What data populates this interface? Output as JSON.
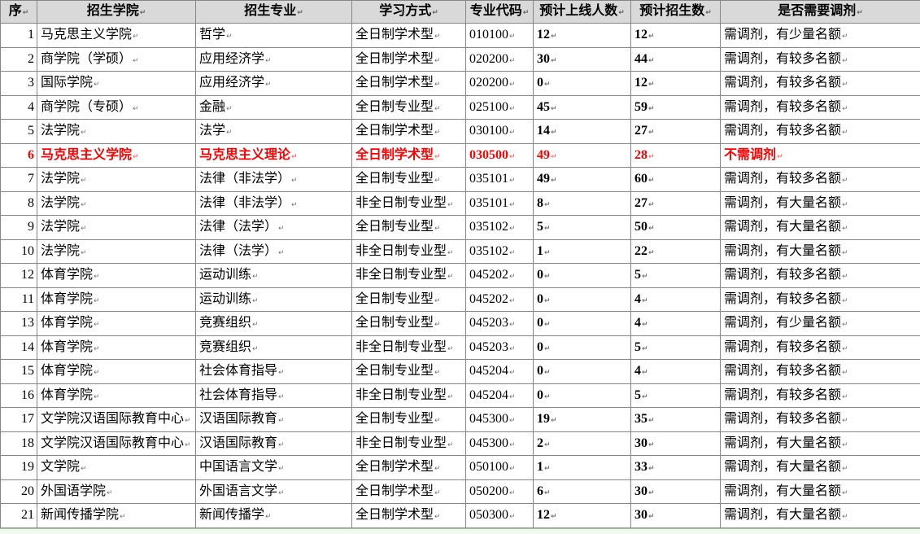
{
  "table": {
    "end_of_cell_mark": "↵",
    "columns": [
      {
        "key": "seq",
        "label": "序"
      },
      {
        "key": "college",
        "label": "招生学院"
      },
      {
        "key": "major",
        "label": "招生专业"
      },
      {
        "key": "mode",
        "label": "学习方式"
      },
      {
        "key": "code",
        "label": "专业代码"
      },
      {
        "key": "online",
        "label": "预计上线人数"
      },
      {
        "key": "enroll",
        "label": "预计招生数"
      },
      {
        "key": "adjust",
        "label": "是否需要调剂"
      }
    ],
    "rows": [
      {
        "seq": "1",
        "college": "马克思主义学院",
        "major": "哲学",
        "mode": "全日制学术型",
        "code": "010100",
        "online": "12",
        "enroll": "12",
        "adjust": "需调剂，有少量名额",
        "highlight": false
      },
      {
        "seq": "2",
        "college": "商学院（学硕）",
        "major": "应用经济学",
        "mode": "全日制学术型",
        "code": "020200",
        "online": "30",
        "enroll": "44",
        "adjust": "需调剂，有较多名额",
        "highlight": false
      },
      {
        "seq": "3",
        "college": "国际学院",
        "major": "应用经济学",
        "mode": "全日制学术型",
        "code": "020200",
        "online": "0",
        "enroll": "12",
        "adjust": "需调剂，有较多名额",
        "highlight": false
      },
      {
        "seq": "4",
        "college": "商学院（专硕）",
        "major": "金融",
        "mode": "全日制专业型",
        "code": "025100",
        "online": "45",
        "enroll": "59",
        "adjust": "需调剂，有较多名额",
        "highlight": false
      },
      {
        "seq": "5",
        "college": "法学院",
        "major": "法学",
        "mode": "全日制学术型",
        "code": "030100",
        "online": "14",
        "enroll": "27",
        "adjust": "需调剂，有较多名额",
        "highlight": false
      },
      {
        "seq": "6",
        "college": "马克思主义学院",
        "major": "马克思主义理论",
        "mode": "全日制学术型",
        "code": "030500",
        "online": "49",
        "enroll": "28",
        "adjust": "不需调剂",
        "highlight": true
      },
      {
        "seq": "7",
        "college": "法学院",
        "major": "法律（非法学）",
        "mode": "全日制专业型",
        "code": "035101",
        "online": "49",
        "enroll": "60",
        "adjust": "需调剂，有较多名额",
        "highlight": false
      },
      {
        "seq": "8",
        "college": "法学院",
        "major": "法律（非法学）",
        "mode": "非全日制专业型",
        "code": "035101",
        "online": "8",
        "enroll": "27",
        "adjust": "需调剂，有大量名额",
        "highlight": false
      },
      {
        "seq": "9",
        "college": "法学院",
        "major": "法律（法学）",
        "mode": "全日制专业型",
        "code": "035102",
        "online": "5",
        "enroll": "50",
        "adjust": "需调剂，有大量名额",
        "highlight": false
      },
      {
        "seq": "10",
        "college": "法学院",
        "major": "法律（法学）",
        "mode": "非全日制专业型",
        "code": "035102",
        "online": "1",
        "enroll": "22",
        "adjust": "需调剂，有大量名额",
        "highlight": false
      },
      {
        "seq": "12",
        "college": "体育学院",
        "major": "运动训练",
        "mode": "非全日制专业型",
        "code": "045202",
        "online": "0",
        "enroll": "5",
        "adjust": "需调剂，有较多名额",
        "highlight": false
      },
      {
        "seq": "11",
        "college": "体育学院",
        "major": "运动训练",
        "mode": "全日制专业型",
        "code": "045202",
        "online": "0",
        "enroll": "4",
        "adjust": "需调剂，有较多名额",
        "highlight": false
      },
      {
        "seq": "13",
        "college": "体育学院",
        "major": "竞赛组织",
        "mode": "全日制专业型",
        "code": "045203",
        "online": "0",
        "enroll": "4",
        "adjust": "需调剂，有少量名额",
        "highlight": false
      },
      {
        "seq": "14",
        "college": "体育学院",
        "major": "竞赛组织",
        "mode": "非全日制专业型",
        "code": "045203",
        "online": "0",
        "enroll": "5",
        "adjust": "需调剂，有较多名额",
        "highlight": false
      },
      {
        "seq": "15",
        "college": "体育学院",
        "major": "社会体育指导",
        "mode": "全日制专业型",
        "code": "045204",
        "online": "0",
        "enroll": "4",
        "adjust": "需调剂，有较多名额",
        "highlight": false
      },
      {
        "seq": "16",
        "college": "体育学院",
        "major": "社会体育指导",
        "mode": "非全日制专业型",
        "code": "045204",
        "online": "0",
        "enroll": "5",
        "adjust": "需调剂，有较多名额",
        "highlight": false
      },
      {
        "seq": "17",
        "college": "文学院汉语国际教育中心",
        "major": "汉语国际教育",
        "mode": "全日制专业型",
        "code": "045300",
        "online": "19",
        "enroll": "35",
        "adjust": "需调剂，有较多名额",
        "highlight": false
      },
      {
        "seq": "18",
        "college": "文学院汉语国际教育中心",
        "major": "汉语国际教育",
        "mode": "非全日制专业型",
        "code": "045300",
        "online": "2",
        "enroll": "30",
        "adjust": "需调剂，有大量名额",
        "highlight": false
      },
      {
        "seq": "19",
        "college": "文学院",
        "major": "中国语言文学",
        "mode": "全日制学术型",
        "code": "050100",
        "online": "1",
        "enroll": "33",
        "adjust": "需调剂，有大量名额",
        "highlight": false
      },
      {
        "seq": "20",
        "college": "外国语学院",
        "major": "外国语言文学",
        "mode": "全日制学术型",
        "code": "050200",
        "online": "6",
        "enroll": "30",
        "adjust": "需调剂，有大量名额",
        "highlight": false
      },
      {
        "seq": "21",
        "college": "新闻传播学院",
        "major": "新闻传播学",
        "mode": "全日制学术型",
        "code": "050300",
        "online": "12",
        "enroll": "30",
        "adjust": "需调剂，有大量名额",
        "highlight": false
      }
    ],
    "colors": {
      "header_bg": "#d9d9d9",
      "border": "#868686",
      "highlight_text": "#ff0000",
      "bottom_strip_bg": "#f1f8ee",
      "bottom_strip_line": "#a9cba0"
    }
  }
}
